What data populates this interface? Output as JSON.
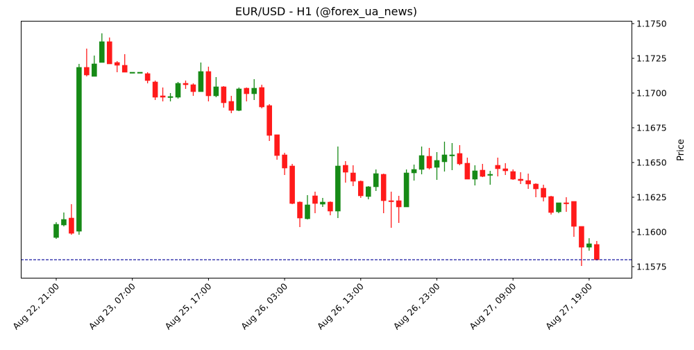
{
  "chart_data": {
    "type": "candlestick",
    "title": "EUR/USD - H1 (@forex_ua_news)",
    "xlabel": "",
    "ylabel": "Price",
    "ylim": [
      1.1567,
      1.1752
    ],
    "y_ticks": [
      "1.1575",
      "1.1600",
      "1.1625",
      "1.1650",
      "1.1675",
      "1.1700",
      "1.1725",
      "1.1750"
    ],
    "y_tick_values": [
      1.1575,
      1.16,
      1.1625,
      1.165,
      1.1675,
      1.17,
      1.1725,
      1.175
    ],
    "x_ticks": [
      "Aug 22, 21:00",
      "Aug 23, 07:00",
      "Aug 25, 17:00",
      "Aug 26, 03:00",
      "Aug 26, 13:00",
      "Aug 26, 23:00",
      "Aug 27, 09:00",
      "Aug 27, 19:00"
    ],
    "x_tick_indices": [
      0,
      10,
      20,
      30,
      40,
      50,
      60,
      70
    ],
    "grid": false,
    "horizontal_line": {
      "value": 1.158,
      "color": "#1a1aa0",
      "style": "dashed"
    },
    "colors": {
      "up": "#168a16",
      "down": "#ff1a1a"
    },
    "ohlc_fields": [
      "open",
      "high",
      "low",
      "close"
    ],
    "ohlc": [
      [
        1.1596,
        1.1607,
        1.1595,
        1.16055
      ],
      [
        1.1605,
        1.1614,
        1.1604,
        1.1609
      ],
      [
        1.161,
        1.162,
        1.1598,
        1.1599
      ],
      [
        1.16005,
        1.1721,
        1.1598,
        1.17185
      ],
      [
        1.17185,
        1.1732,
        1.1712,
        1.1713
      ],
      [
        1.1712,
        1.1727,
        1.1712,
        1.1721
      ],
      [
        1.1722,
        1.1743,
        1.1722,
        1.1737
      ],
      [
        1.1737,
        1.174,
        1.1721,
        1.1721
      ],
      [
        1.1722,
        1.1723,
        1.1715,
        1.172
      ],
      [
        1.172,
        1.1728,
        1.1715,
        1.1715
      ],
      [
        1.1715,
        1.1715,
        1.1715,
        1.1715
      ],
      [
        1.1715,
        1.1715,
        1.1715,
        1.1715
      ],
      [
        1.1714,
        1.1715,
        1.1707,
        1.1709
      ],
      [
        1.1708,
        1.1709,
        1.1695,
        1.1697
      ],
      [
        1.1698,
        1.1704,
        1.1694,
        1.1697
      ],
      [
        1.1697,
        1.17,
        1.1694,
        1.16975
      ],
      [
        1.1697,
        1.1708,
        1.1696,
        1.1707
      ],
      [
        1.1707,
        1.1709,
        1.1703,
        1.1706
      ],
      [
        1.1706,
        1.1707,
        1.1698,
        1.1701
      ],
      [
        1.1701,
        1.1722,
        1.1701,
        1.17155
      ],
      [
        1.17155,
        1.1719,
        1.1694,
        1.1698
      ],
      [
        1.1698,
        1.17115,
        1.1697,
        1.17045
      ],
      [
        1.17045,
        1.1705,
        1.16895,
        1.1693
      ],
      [
        1.1694,
        1.1698,
        1.16855,
        1.16875
      ],
      [
        1.16875,
        1.1704,
        1.1687,
        1.1703
      ],
      [
        1.17035,
        1.1704,
        1.1694,
        1.16995
      ],
      [
        1.16995,
        1.171,
        1.1695,
        1.17035
      ],
      [
        1.1704,
        1.1706,
        1.1689,
        1.169
      ],
      [
        1.1691,
        1.1692,
        1.16655,
        1.16695
      ],
      [
        1.167,
        1.167,
        1.1652,
        1.1655
      ],
      [
        1.16555,
        1.1657,
        1.1641,
        1.1646
      ],
      [
        1.16475,
        1.1649,
        1.162,
        1.16205
      ],
      [
        1.16215,
        1.1622,
        1.16035,
        1.161
      ],
      [
        1.16095,
        1.16265,
        1.1609,
        1.16195
      ],
      [
        1.1626,
        1.1629,
        1.16135,
        1.16205
      ],
      [
        1.162,
        1.16245,
        1.1618,
        1.16215
      ],
      [
        1.16215,
        1.1622,
        1.1612,
        1.1615
      ],
      [
        1.1615,
        1.16615,
        1.161,
        1.16475
      ],
      [
        1.1648,
        1.1651,
        1.16355,
        1.1643
      ],
      [
        1.16425,
        1.1648,
        1.1633,
        1.16365
      ],
      [
        1.16365,
        1.1637,
        1.16245,
        1.1626
      ],
      [
        1.16255,
        1.1633,
        1.16235,
        1.16325
      ],
      [
        1.16325,
        1.1645,
        1.16295,
        1.1642
      ],
      [
        1.16415,
        1.1642,
        1.16135,
        1.16225
      ],
      [
        1.16225,
        1.1629,
        1.1603,
        1.1622
      ],
      [
        1.16225,
        1.1626,
        1.16065,
        1.1618
      ],
      [
        1.1618,
        1.1645,
        1.1618,
        1.16425
      ],
      [
        1.16425,
        1.16485,
        1.1637,
        1.1645
      ],
      [
        1.1645,
        1.16615,
        1.16415,
        1.1655
      ],
      [
        1.16545,
        1.16605,
        1.1645,
        1.1646
      ],
      [
        1.16465,
        1.16575,
        1.16375,
        1.16515
      ],
      [
        1.16505,
        1.1665,
        1.16435,
        1.16555
      ],
      [
        1.1655,
        1.1664,
        1.16445,
        1.16555
      ],
      [
        1.16565,
        1.16625,
        1.1648,
        1.1649
      ],
      [
        1.16495,
        1.16535,
        1.1638,
        1.1638
      ],
      [
        1.1638,
        1.1648,
        1.16335,
        1.1644
      ],
      [
        1.16445,
        1.1649,
        1.16395,
        1.164
      ],
      [
        1.1641,
        1.1644,
        1.1634,
        1.16415
      ],
      [
        1.1648,
        1.16535,
        1.164,
        1.16455
      ],
      [
        1.16455,
        1.16495,
        1.1641,
        1.1644
      ],
      [
        1.16435,
        1.1645,
        1.16375,
        1.1638
      ],
      [
        1.1638,
        1.1643,
        1.16345,
        1.1637
      ],
      [
        1.1637,
        1.1642,
        1.1631,
        1.16345
      ],
      [
        1.16345,
        1.1635,
        1.1625,
        1.1631
      ],
      [
        1.16315,
        1.1634,
        1.1622,
        1.1625
      ],
      [
        1.16255,
        1.1626,
        1.16125,
        1.1614
      ],
      [
        1.16145,
        1.1621,
        1.16135,
        1.1621
      ],
      [
        1.1621,
        1.1625,
        1.16145,
        1.16205
      ],
      [
        1.1622,
        1.1622,
        1.15965,
        1.1604
      ],
      [
        1.1604,
        1.1604,
        1.15755,
        1.1589
      ],
      [
        1.1589,
        1.15955,
        1.15865,
        1.15915
      ],
      [
        1.1591,
        1.15935,
        1.15795,
        1.158
      ]
    ]
  }
}
